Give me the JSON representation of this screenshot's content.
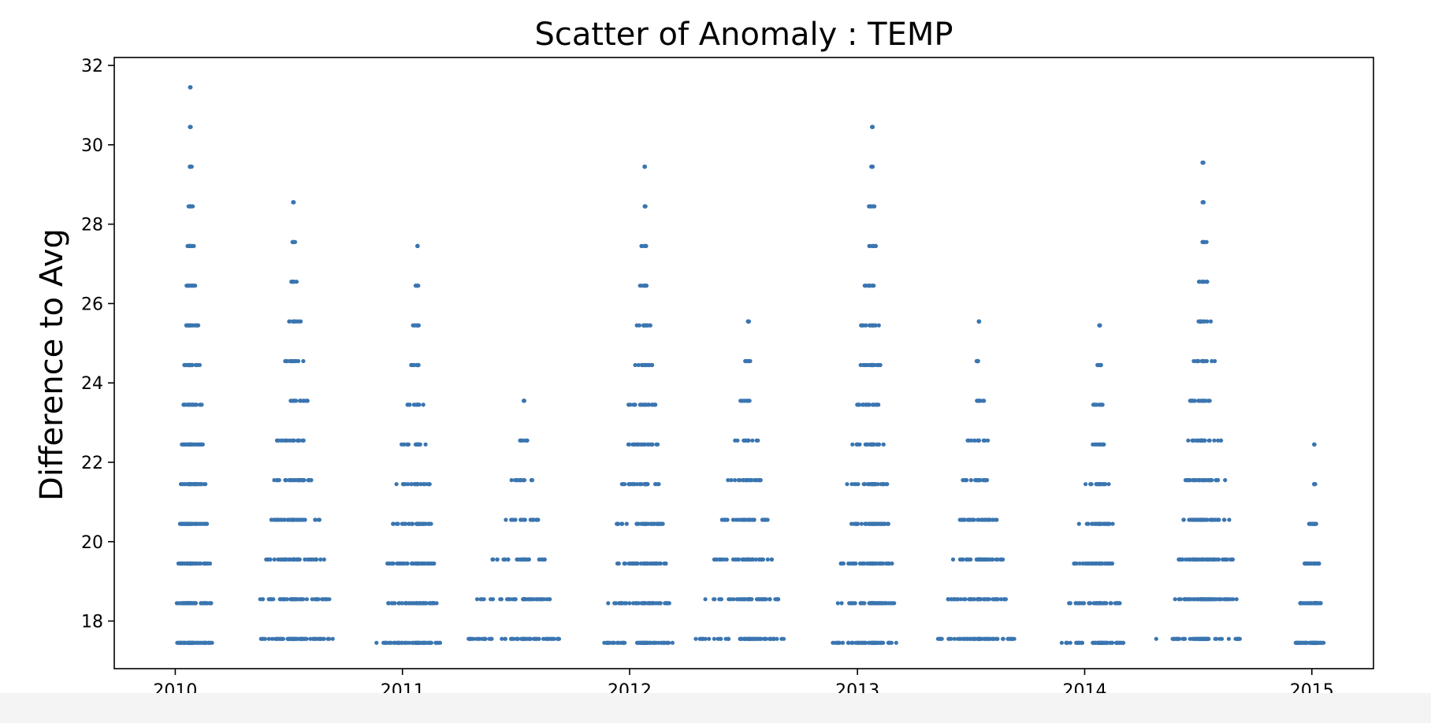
{
  "chart_data": {
    "type": "scatter",
    "title": "Scatter of Anomaly : TEMP",
    "xlabel": "",
    "ylabel": "Difference to Avg",
    "x_ticks": [
      "2010",
      "2011",
      "2012",
      "2013",
      "2014",
      "2015"
    ],
    "y_ticks": [
      "18",
      "20",
      "22",
      "24",
      "26",
      "28",
      "30",
      "32"
    ],
    "xlim": [
      "2009-09-25",
      "2015-04-10"
    ],
    "ylim": [
      16.8,
      32.2
    ],
    "grid": false,
    "legend": "none",
    "marker_color": "#3a75b0",
    "clusters": [
      {
        "center": "2010-01-25",
        "start": "2010-01-01",
        "end": "2010-03-05",
        "tops": [
          31.45,
          30.45,
          29.45,
          28.45,
          27.45,
          26.45,
          25.45,
          24.45,
          23.45,
          22.45,
          21.45,
          20.45,
          19.45,
          18.45,
          17.45
        ]
      },
      {
        "center": "2010-07-10",
        "start": "2010-05-10",
        "end": "2010-09-15",
        "tops": [
          28.55,
          27.55,
          26.55,
          25.55,
          24.55,
          23.55,
          22.55,
          21.55,
          20.55,
          19.55,
          18.55,
          17.55
        ]
      },
      {
        "center": "2011-01-25",
        "start": "2010-11-20",
        "end": "2011-03-05",
        "tops": [
          27.45,
          26.45,
          25.45,
          24.45,
          23.45,
          22.45,
          21.45,
          20.45,
          19.45,
          18.45,
          17.45
        ]
      },
      {
        "center": "2011-07-15",
        "start": "2011-04-15",
        "end": "2011-09-10",
        "tops": [
          23.55,
          22.55,
          21.55,
          20.55,
          19.55,
          18.55,
          17.55
        ]
      },
      {
        "center": "2012-01-25",
        "start": "2011-11-20",
        "end": "2012-03-10",
        "tops": [
          29.45,
          28.45,
          27.45,
          26.45,
          25.45,
          24.45,
          23.45,
          22.45,
          21.45,
          20.45,
          19.45,
          18.45,
          17.45
        ]
      },
      {
        "center": "2012-07-10",
        "start": "2012-04-15",
        "end": "2012-09-05",
        "tops": [
          25.55,
          24.55,
          23.55,
          22.55,
          21.55,
          20.55,
          19.55,
          18.55,
          17.55
        ]
      },
      {
        "center": "2013-01-25",
        "start": "2012-11-20",
        "end": "2013-03-05",
        "tops": [
          30.45,
          29.45,
          28.45,
          27.45,
          26.45,
          25.45,
          24.45,
          23.45,
          22.45,
          21.45,
          20.45,
          19.45,
          18.45,
          17.45
        ]
      },
      {
        "center": "2013-07-15",
        "start": "2013-05-10",
        "end": "2013-09-10",
        "tops": [
          25.55,
          24.55,
          23.55,
          22.55,
          21.55,
          20.55,
          19.55,
          18.55,
          17.55
        ]
      },
      {
        "center": "2014-01-25",
        "start": "2013-11-25",
        "end": "2014-03-05",
        "tops": [
          25.45,
          24.45,
          23.45,
          22.45,
          21.45,
          20.45,
          19.45,
          18.45,
          17.45
        ]
      },
      {
        "center": "2014-07-10",
        "start": "2014-05-20",
        "end": "2014-09-10",
        "tops": [
          29.55,
          28.55,
          27.55,
          26.55,
          25.55,
          24.55,
          23.55,
          22.55,
          21.55,
          20.55,
          19.55,
          18.55,
          17.55
        ]
      },
      {
        "center": "2015-01-05",
        "start": "2014-12-05",
        "end": "2015-01-20",
        "tops": [
          22.45,
          21.45,
          20.45,
          19.45,
          18.45,
          17.45
        ]
      }
    ],
    "isolated_points": [
      {
        "x": "2011-05-01",
        "y": 18.55
      },
      {
        "x": "2011-04-25",
        "y": 17.55
      },
      {
        "x": "2012-04-28",
        "y": 17.55
      },
      {
        "x": "2014-04-26",
        "y": 17.55
      }
    ]
  }
}
